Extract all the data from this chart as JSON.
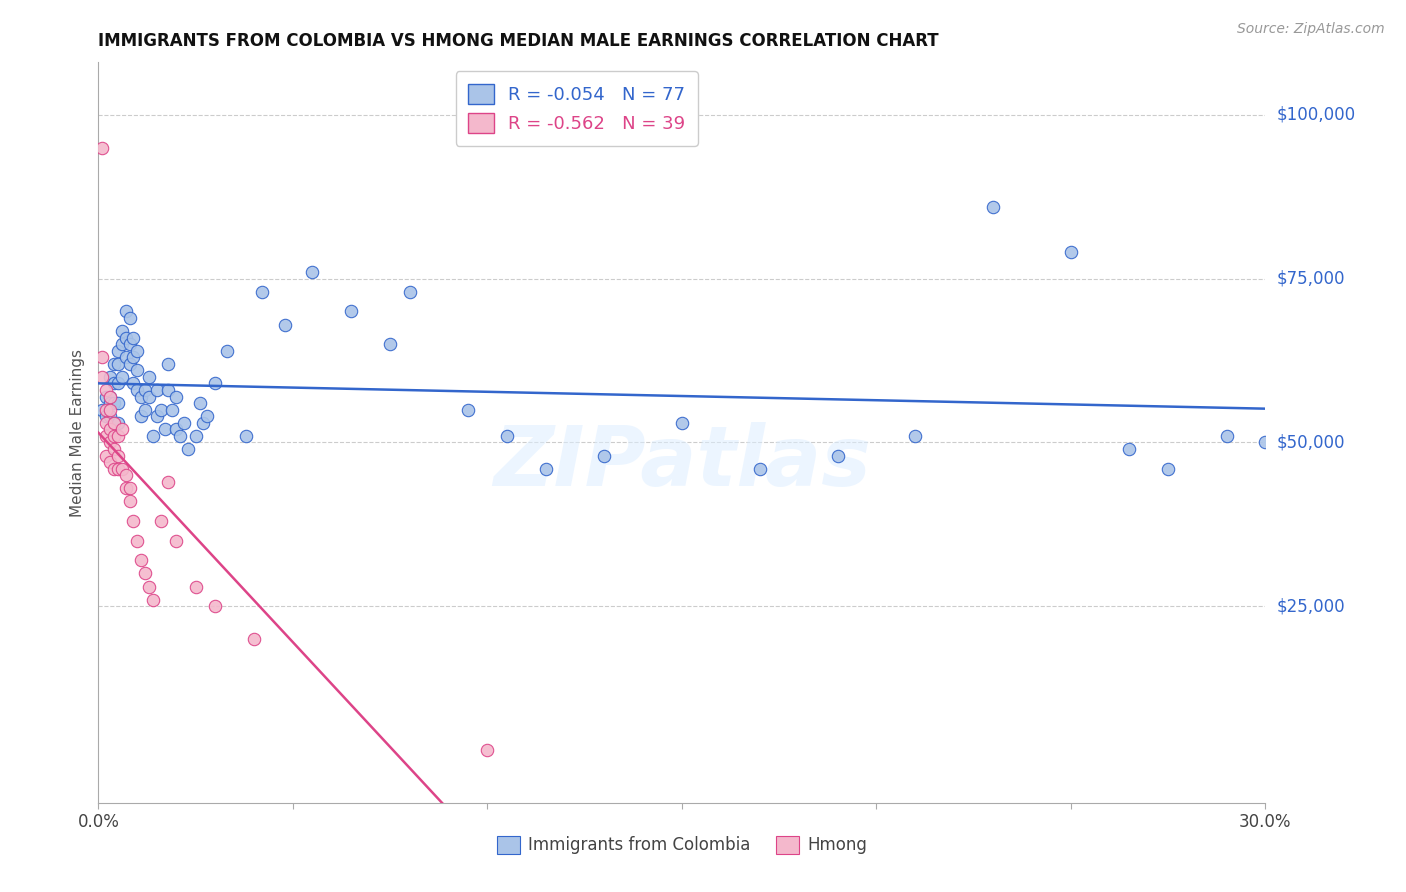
{
  "title": "IMMIGRANTS FROM COLOMBIA VS HMONG MEDIAN MALE EARNINGS CORRELATION CHART",
  "source": "Source: ZipAtlas.com",
  "ylabel": "Median Male Earnings",
  "ytick_labels": [
    "$25,000",
    "$50,000",
    "$75,000",
    "$100,000"
  ],
  "ytick_values": [
    25000,
    50000,
    75000,
    100000
  ],
  "ylim": [
    -5000,
    108000
  ],
  "xlim": [
    0.0,
    0.3
  ],
  "xtick_positions": [
    0.0,
    0.05,
    0.1,
    0.15,
    0.2,
    0.25,
    0.3
  ],
  "xtick_labels": [
    "0.0%",
    "",
    "",
    "",
    "",
    "",
    "30.0%"
  ],
  "watermark": "ZIPatlas",
  "legend_colombia": "R = -0.054   N = 77",
  "legend_hmong": "R = -0.562   N = 39",
  "legend_label_colombia": "Immigrants from Colombia",
  "legend_label_hmong": "Hmong",
  "color_colombia": "#aac4e8",
  "color_hmong": "#f4b8cc",
  "color_colombia_line": "#3366cc",
  "color_hmong_line": "#dd4488",
  "color_ytick": "#3366cc",
  "colombia_x": [
    0.001,
    0.002,
    0.002,
    0.003,
    0.003,
    0.003,
    0.003,
    0.004,
    0.004,
    0.004,
    0.004,
    0.005,
    0.005,
    0.005,
    0.005,
    0.005,
    0.006,
    0.006,
    0.006,
    0.007,
    0.007,
    0.007,
    0.008,
    0.008,
    0.008,
    0.009,
    0.009,
    0.009,
    0.01,
    0.01,
    0.01,
    0.011,
    0.011,
    0.012,
    0.012,
    0.013,
    0.013,
    0.014,
    0.015,
    0.015,
    0.016,
    0.017,
    0.018,
    0.018,
    0.019,
    0.02,
    0.02,
    0.021,
    0.022,
    0.023,
    0.025,
    0.026,
    0.027,
    0.028,
    0.03,
    0.033,
    0.038,
    0.042,
    0.048,
    0.055,
    0.065,
    0.075,
    0.08,
    0.095,
    0.105,
    0.115,
    0.13,
    0.15,
    0.17,
    0.19,
    0.21,
    0.23,
    0.25,
    0.265,
    0.275,
    0.29,
    0.3
  ],
  "colombia_y": [
    55000,
    54000,
    57000,
    60000,
    57000,
    54000,
    56000,
    62000,
    59000,
    56000,
    53000,
    64000,
    62000,
    59000,
    56000,
    53000,
    67000,
    65000,
    60000,
    70000,
    66000,
    63000,
    69000,
    65000,
    62000,
    66000,
    63000,
    59000,
    64000,
    61000,
    58000,
    57000,
    54000,
    58000,
    55000,
    60000,
    57000,
    51000,
    54000,
    58000,
    55000,
    52000,
    62000,
    58000,
    55000,
    52000,
    57000,
    51000,
    53000,
    49000,
    51000,
    56000,
    53000,
    54000,
    59000,
    64000,
    51000,
    73000,
    68000,
    76000,
    70000,
    65000,
    73000,
    55000,
    51000,
    46000,
    48000,
    53000,
    46000,
    48000,
    51000,
    86000,
    79000,
    49000,
    46000,
    51000,
    50000
  ],
  "hmong_x": [
    0.001,
    0.001,
    0.001,
    0.002,
    0.002,
    0.002,
    0.002,
    0.002,
    0.003,
    0.003,
    0.003,
    0.003,
    0.003,
    0.004,
    0.004,
    0.004,
    0.004,
    0.005,
    0.005,
    0.005,
    0.006,
    0.006,
    0.007,
    0.007,
    0.008,
    0.008,
    0.009,
    0.01,
    0.011,
    0.012,
    0.013,
    0.014,
    0.016,
    0.018,
    0.02,
    0.025,
    0.03,
    0.04,
    0.1
  ],
  "hmong_y": [
    95000,
    63000,
    60000,
    58000,
    55000,
    53000,
    51000,
    48000,
    57000,
    55000,
    52000,
    50000,
    47000,
    53000,
    51000,
    49000,
    46000,
    51000,
    48000,
    46000,
    52000,
    46000,
    45000,
    43000,
    43000,
    41000,
    38000,
    35000,
    32000,
    30000,
    28000,
    26000,
    38000,
    44000,
    35000,
    28000,
    25000,
    20000,
    3000
  ],
  "hmong_trend_end_x": 0.135
}
